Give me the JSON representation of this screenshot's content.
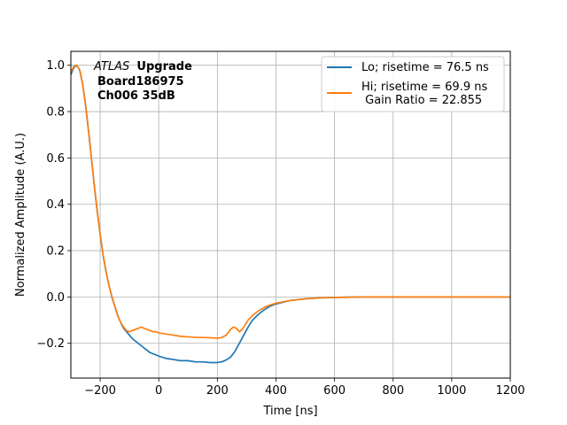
{
  "chart_data": {
    "type": "line",
    "xlabel": "Time [ns]",
    "ylabel": "Normalized Amplitude (A.U.)",
    "xlim": [
      -300,
      1200
    ],
    "ylim": [
      -0.35,
      1.06
    ],
    "xticks": [
      -200,
      0,
      200,
      400,
      600,
      800,
      1000,
      1200
    ],
    "xtick_labels": [
      "−200",
      "0",
      "200",
      "400",
      "600",
      "800",
      "1000",
      "1200"
    ],
    "yticks": [
      -0.2,
      0.0,
      0.2,
      0.4,
      0.6,
      0.8,
      1.0
    ],
    "ytick_labels": [
      "−0.2",
      "0.0",
      "0.2",
      "0.4",
      "0.6",
      "0.8",
      "1.0"
    ],
    "grid": true,
    "legend_position": "top-right",
    "annotation": {
      "experiment": "ATLAS",
      "label": "Upgrade",
      "board": "Board186975",
      "channel": "Ch006 35dB"
    },
    "series": [
      {
        "name": "Lo; risetime = 76.5 ns",
        "color": "#1f77b4",
        "x": [
          -300,
          -290,
          -280,
          -270,
          -260,
          -250,
          -240,
          -230,
          -220,
          -210,
          -200,
          -190,
          -180,
          -170,
          -160,
          -150,
          -140,
          -130,
          -120,
          -110,
          -100,
          -90,
          -80,
          -70,
          -60,
          -50,
          -40,
          -30,
          -20,
          -10,
          0,
          25,
          50,
          75,
          100,
          125,
          150,
          175,
          200,
          215,
          230,
          245,
          260,
          275,
          290,
          305,
          320,
          340,
          360,
          380,
          400,
          450,
          500,
          550,
          600,
          700,
          800,
          900,
          1000,
          1100,
          1200
        ],
        "y": [
          0.96,
          0.99,
          1.0,
          0.98,
          0.92,
          0.83,
          0.72,
          0.6,
          0.48,
          0.37,
          0.27,
          0.18,
          0.11,
          0.05,
          0.0,
          -0.04,
          -0.08,
          -0.11,
          -0.135,
          -0.15,
          -0.165,
          -0.18,
          -0.19,
          -0.2,
          -0.21,
          -0.22,
          -0.23,
          -0.24,
          -0.245,
          -0.25,
          -0.255,
          -0.265,
          -0.27,
          -0.275,
          -0.275,
          -0.28,
          -0.28,
          -0.283,
          -0.283,
          -0.28,
          -0.272,
          -0.26,
          -0.235,
          -0.2,
          -0.165,
          -0.13,
          -0.1,
          -0.075,
          -0.055,
          -0.04,
          -0.03,
          -0.015,
          -0.008,
          -0.004,
          -0.002,
          0.0,
          0.0,
          0.0,
          0.0,
          0.0,
          0.0
        ]
      },
      {
        "name": "Hi; risetime = 69.9 ns\n Gain Ratio = 22.855",
        "color": "#ff7f0e",
        "x": [
          -300,
          -290,
          -280,
          -270,
          -260,
          -250,
          -240,
          -230,
          -220,
          -210,
          -200,
          -190,
          -180,
          -170,
          -160,
          -150,
          -140,
          -130,
          -120,
          -110,
          -100,
          -90,
          -80,
          -70,
          -60,
          -50,
          -40,
          -30,
          -20,
          -10,
          0,
          25,
          50,
          75,
          100,
          125,
          150,
          175,
          200,
          215,
          230,
          245,
          255,
          265,
          275,
          285,
          295,
          305,
          320,
          340,
          360,
          380,
          400,
          450,
          500,
          550,
          600,
          700,
          800,
          900,
          1000,
          1100,
          1200
        ],
        "y": [
          0.97,
          0.995,
          1.0,
          0.98,
          0.92,
          0.83,
          0.72,
          0.6,
          0.48,
          0.37,
          0.27,
          0.18,
          0.11,
          0.05,
          0.0,
          -0.04,
          -0.08,
          -0.11,
          -0.13,
          -0.145,
          -0.15,
          -0.145,
          -0.14,
          -0.135,
          -0.13,
          -0.135,
          -0.14,
          -0.145,
          -0.15,
          -0.15,
          -0.155,
          -0.16,
          -0.165,
          -0.17,
          -0.172,
          -0.174,
          -0.175,
          -0.176,
          -0.178,
          -0.175,
          -0.165,
          -0.14,
          -0.13,
          -0.135,
          -0.15,
          -0.14,
          -0.12,
          -0.1,
          -0.08,
          -0.06,
          -0.045,
          -0.035,
          -0.027,
          -0.015,
          -0.008,
          -0.004,
          -0.002,
          0.0,
          0.0,
          0.0,
          0.0,
          0.0,
          0.0
        ]
      }
    ]
  }
}
